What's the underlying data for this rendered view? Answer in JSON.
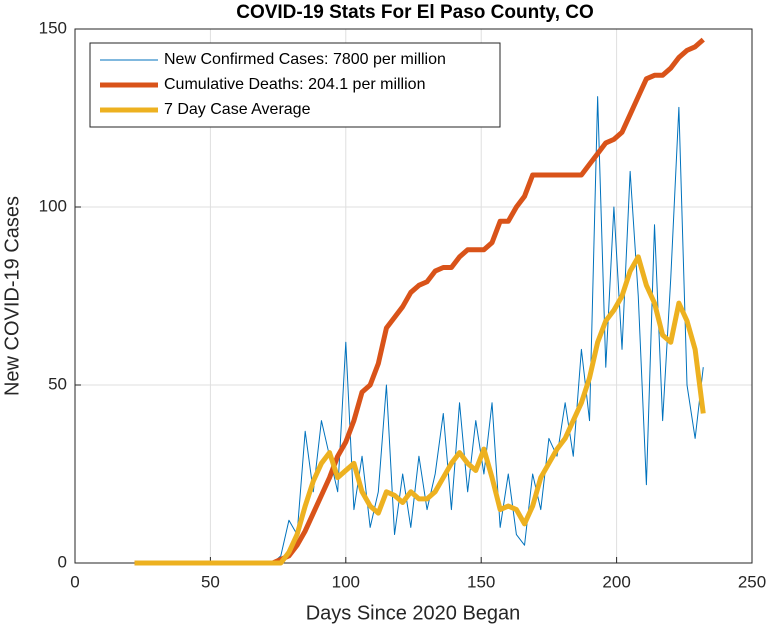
{
  "chart_data": {
    "type": "line",
    "title": "COVID-19 Stats For El Paso County, CO",
    "xlabel": "Days Since 2020 Began",
    "ylabel": "New COVID-19 Cases",
    "x": [
      22,
      25,
      28,
      31,
      34,
      37,
      40,
      43,
      46,
      49,
      52,
      55,
      58,
      61,
      64,
      67,
      70,
      73,
      76,
      79,
      82,
      85,
      88,
      91,
      94,
      97,
      100,
      103,
      106,
      109,
      112,
      115,
      118,
      121,
      124,
      127,
      130,
      133,
      136,
      139,
      142,
      145,
      148,
      151,
      154,
      157,
      160,
      163,
      166,
      169,
      172,
      175,
      178,
      181,
      184,
      187,
      190,
      193,
      196,
      199,
      202,
      205,
      208,
      211,
      214,
      217,
      220,
      223,
      226,
      229,
      232
    ],
    "series": [
      {
        "name": "New Confirmed Cases: 7800 per million",
        "color": "#0072BD",
        "width": 1,
        "values": [
          0,
          0,
          0,
          0,
          0,
          0,
          0,
          0,
          0,
          0,
          0,
          0,
          0,
          0,
          0,
          0,
          0,
          0,
          2,
          12,
          8,
          37,
          20,
          40,
          30,
          20,
          62,
          15,
          30,
          10,
          20,
          50,
          8,
          25,
          10,
          30,
          15,
          25,
          42,
          15,
          45,
          20,
          40,
          25,
          45,
          10,
          25,
          8,
          5,
          25,
          15,
          35,
          30,
          45,
          30,
          60,
          40,
          131,
          55,
          100,
          60,
          110,
          75,
          22,
          95,
          40,
          80,
          128,
          50,
          35,
          55
        ]
      },
      {
        "name": "Cumulative Deaths: 204.1 per million",
        "color": "#D95319",
        "width": 5,
        "values": [
          0,
          0,
          0,
          0,
          0,
          0,
          0,
          0,
          0,
          0,
          0,
          0,
          0,
          0,
          0,
          0,
          0,
          0,
          1,
          2,
          5,
          9,
          14,
          19,
          24,
          30,
          34,
          40,
          48,
          50,
          56,
          66,
          69,
          72,
          76,
          78,
          79,
          82,
          83,
          83,
          86,
          88,
          88,
          88,
          90,
          96,
          96,
          100,
          103,
          109,
          109,
          109,
          109,
          109,
          109,
          109,
          112,
          115,
          118,
          119,
          121,
          126,
          131,
          136,
          137,
          137,
          139,
          142,
          144,
          145,
          147
        ]
      },
      {
        "name": "7 Day Case Average",
        "color": "#EDB120",
        "width": 5,
        "values": [
          0,
          0,
          0,
          0,
          0,
          0,
          0,
          0,
          0,
          0,
          0,
          0,
          0,
          0,
          0,
          0,
          0,
          0,
          0,
          3,
          8,
          16,
          23,
          28,
          31,
          24,
          26,
          28,
          20,
          16,
          14,
          20,
          19,
          17,
          20,
          18,
          18,
          20,
          24,
          28,
          31,
          28,
          26,
          32,
          24,
          15,
          16,
          15,
          11,
          16,
          24,
          28,
          32,
          35,
          40,
          45,
          52,
          62,
          68,
          71,
          75,
          82,
          86,
          78,
          73,
          64,
          62,
          73,
          68,
          60,
          42
        ]
      }
    ],
    "xlim": [
      0,
      250
    ],
    "xticks": [
      0,
      50,
      100,
      150,
      200,
      250
    ],
    "ylim": [
      0,
      150
    ],
    "yticks": [
      0,
      50,
      100,
      150
    ],
    "grid": true,
    "legend": "top-left"
  }
}
